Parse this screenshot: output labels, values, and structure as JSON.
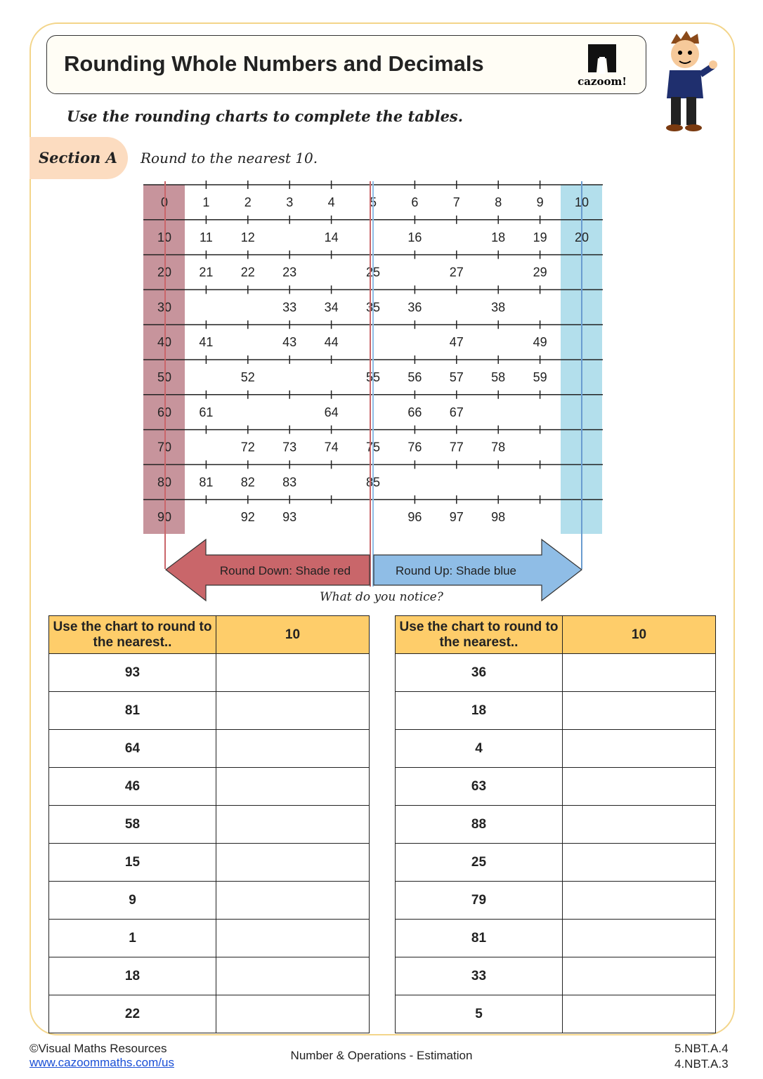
{
  "title": "Rounding Whole Numbers and Decimals",
  "logo_text": "cazoom!",
  "instruction": "Use the rounding charts to complete the tables.",
  "section": {
    "label": "Section A",
    "instruction": "Round to the nearest 10."
  },
  "chart": {
    "rows": [
      [
        "0",
        "1",
        "2",
        "3",
        "4",
        "5",
        "6",
        "7",
        "8",
        "9",
        "10"
      ],
      [
        "10",
        "11",
        "12",
        "",
        "14",
        "",
        "16",
        "",
        "18",
        "19",
        "20"
      ],
      [
        "20",
        "21",
        "22",
        "23",
        "",
        "25",
        "",
        "27",
        "",
        "29",
        ""
      ],
      [
        "30",
        "",
        "",
        "33",
        "34",
        "35",
        "36",
        "",
        "38",
        "",
        ""
      ],
      [
        "40",
        "41",
        "",
        "43",
        "44",
        "",
        "",
        "47",
        "",
        "49",
        ""
      ],
      [
        "50",
        "",
        "52",
        "",
        "",
        "55",
        "56",
        "57",
        "58",
        "59",
        ""
      ],
      [
        "60",
        "61",
        "",
        "",
        "64",
        "",
        "66",
        "67",
        "",
        "",
        ""
      ],
      [
        "70",
        "",
        "72",
        "73",
        "74",
        "75",
        "76",
        "77",
        "78",
        "",
        ""
      ],
      [
        "80",
        "81",
        "82",
        "83",
        "",
        "85",
        "",
        "",
        "",
        "",
        ""
      ],
      [
        "90",
        "",
        "92",
        "93",
        "",
        "",
        "96",
        "97",
        "98",
        "",
        ""
      ]
    ],
    "round_down_label": "Round Down: Shade red",
    "round_up_label": "Round Up: Shade blue",
    "colors": {
      "down": "#c9666a",
      "up": "#8fbde6",
      "down_shade": "#c7949c",
      "up_shade": "#b3dfec"
    }
  },
  "notice": "What do you notice?",
  "left_table": {
    "header": "Use the chart to round to the nearest..",
    "header_value": "10",
    "values": [
      "93",
      "81",
      "64",
      "46",
      "58",
      "15",
      "9",
      "1",
      "18",
      "22"
    ]
  },
  "right_table": {
    "header": "Use the chart to round to the nearest..",
    "header_value": "10",
    "values": [
      "36",
      "18",
      "4",
      "63",
      "88",
      "25",
      "79",
      "81",
      "33",
      "5"
    ]
  },
  "footer": {
    "copyright": "©Visual Maths Resources",
    "link": "www.cazoommaths.com/us",
    "topic": "Number & Operations - Estimation",
    "standards": [
      "5.NBT.A.4",
      "4.NBT.A.3"
    ]
  }
}
